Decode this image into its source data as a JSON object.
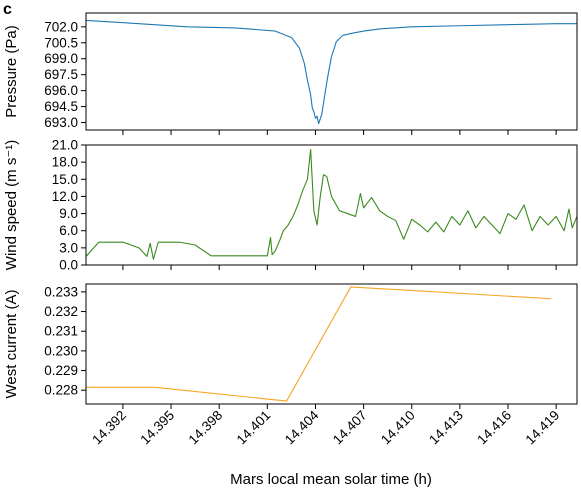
{
  "panel_letter": "c",
  "chart_data": [
    {
      "type": "line",
      "ylabel": "Pressure (Pa)",
      "color": "#1f77b4",
      "ylim": [
        692.3,
        703.3
      ],
      "yticks": [
        702.0,
        700.5,
        699.0,
        697.5,
        696.0,
        694.5,
        693.0
      ],
      "ytick_labels": [
        "702.0",
        "700.5",
        "699.0",
        "697.5",
        "696.0",
        "694.5",
        "693.0"
      ],
      "series": [
        {
          "x": [
            14.3897,
            14.393,
            14.396,
            14.399,
            14.4015,
            14.4025,
            14.403,
            14.4033,
            14.4035,
            14.4037,
            14.4038,
            14.4039,
            14.404,
            14.4041,
            14.4042,
            14.4044,
            14.4046,
            14.4048,
            14.405,
            14.4053,
            14.4057,
            14.4063,
            14.407,
            14.408,
            14.41,
            14.413,
            14.416,
            14.419,
            14.4203
          ],
          "y": [
            702.6,
            702.3,
            702.0,
            701.9,
            701.6,
            701.0,
            700.0,
            698.6,
            697.0,
            695.6,
            694.4,
            694.0,
            693.4,
            693.6,
            692.9,
            693.8,
            695.8,
            697.6,
            699.2,
            700.6,
            701.2,
            701.4,
            701.6,
            701.8,
            702.0,
            702.1,
            702.2,
            702.3,
            702.3
          ]
        }
      ]
    },
    {
      "type": "line",
      "ylabel": "Wind speed (m s⁻¹)",
      "color": "#3a8a1f",
      "ylim": [
        0.0,
        21.0
      ],
      "yticks": [
        0.0,
        3.0,
        6.0,
        9.0,
        12.0,
        15.0,
        18.0,
        21.0
      ],
      "ytick_labels": [
        "0.0",
        "3.0",
        "6.0",
        "9.0",
        "12.0",
        "15.0",
        "18.0",
        "21.0"
      ],
      "series": [
        {
          "x": [
            14.3897,
            14.3905,
            14.392,
            14.393,
            14.3935,
            14.3937,
            14.3939,
            14.3942,
            14.3955,
            14.3965,
            14.3975,
            14.3995,
            14.401,
            14.4012,
            14.4013,
            14.4015,
            14.4018,
            14.402,
            14.4023,
            14.4026,
            14.4029,
            14.4032,
            14.4035,
            14.4037,
            14.4039,
            14.4041,
            14.4043,
            14.4045,
            14.4047,
            14.405,
            14.4055,
            14.406,
            14.4065,
            14.4068,
            14.407,
            14.4075,
            14.408,
            14.4085,
            14.409,
            14.4095,
            14.41,
            14.4105,
            14.411,
            14.4115,
            14.412,
            14.4125,
            14.413,
            14.4135,
            14.414,
            14.4145,
            14.415,
            14.4155,
            14.416,
            14.4165,
            14.417,
            14.4175,
            14.418,
            14.4185,
            14.419,
            14.4195,
            14.4198,
            14.42,
            14.4203
          ],
          "y": [
            1.5,
            4.0,
            4.0,
            3.0,
            1.5,
            3.8,
            1.0,
            4.0,
            4.0,
            3.5,
            1.6,
            1.6,
            1.6,
            4.8,
            1.8,
            2.5,
            4.5,
            6.0,
            7.0,
            8.5,
            10.5,
            13.0,
            15.0,
            20.2,
            9.5,
            7.0,
            12.0,
            15.8,
            15.5,
            12.0,
            9.5,
            9.0,
            8.5,
            12.5,
            10.0,
            11.8,
            9.5,
            8.5,
            7.8,
            4.5,
            8.0,
            7.0,
            5.8,
            7.5,
            5.8,
            8.5,
            7.0,
            9.5,
            6.5,
            8.5,
            7.0,
            5.5,
            9.0,
            8.0,
            10.5,
            6.0,
            8.5,
            7.0,
            8.5,
            6.0,
            9.8,
            6.5,
            8.5
          ]
        }
      ]
    },
    {
      "type": "line",
      "ylabel": "West current (A)",
      "color": "#f5a623",
      "ylim": [
        0.2273,
        0.2334
      ],
      "yticks": [
        0.228,
        0.229,
        0.23,
        0.231,
        0.232,
        0.233
      ],
      "ytick_labels": [
        "0.228",
        "0.229",
        "0.230",
        "0.231",
        "0.232",
        "0.233"
      ],
      "series": [
        {
          "x": [
            14.3897,
            14.394,
            14.4022,
            14.4062,
            14.4187
          ],
          "y": [
            0.22815,
            0.22815,
            0.22745,
            0.23325,
            0.23265
          ]
        }
      ]
    }
  ],
  "x_axis": {
    "label": "Mars local mean solar time (h)",
    "xlim": [
      14.3897,
      14.4203
    ],
    "ticks": [
      14.392,
      14.395,
      14.398,
      14.401,
      14.404,
      14.407,
      14.41,
      14.413,
      14.416,
      14.419
    ],
    "tick_labels": [
      "14.392",
      "14.395",
      "14.398",
      "14.401",
      "14.404",
      "14.407",
      "14.410",
      "14.413",
      "14.416",
      "14.419"
    ]
  }
}
